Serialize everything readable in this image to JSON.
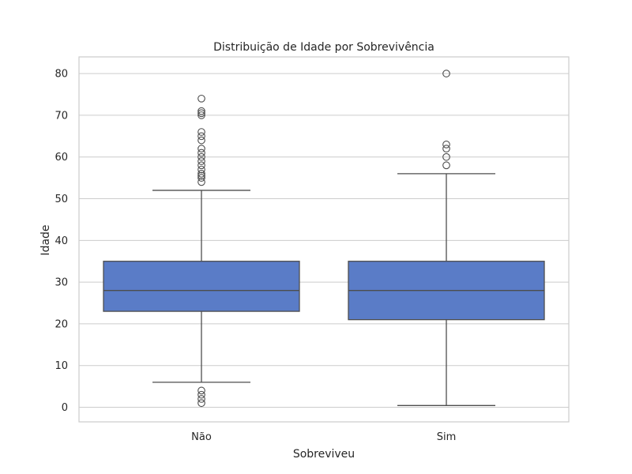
{
  "chart_data": {
    "type": "box",
    "title": "Distribuição de Idade por Sobrevivência",
    "xlabel": "Sobreviveu",
    "ylabel": "Idade",
    "categories": [
      "Não",
      "Sim"
    ],
    "ylim": [
      -3.5,
      84
    ],
    "yticks": [
      0,
      10,
      20,
      30,
      40,
      50,
      60,
      70,
      80
    ],
    "grid": true,
    "box_color": "#5a7cc7",
    "line_color": "#4d4d4d",
    "boxes": [
      {
        "category": "Não",
        "whisker_low": 6,
        "q1": 23,
        "median": 28,
        "q3": 35,
        "whisker_high": 52,
        "outliers": [
          74,
          71,
          70.5,
          70,
          66,
          65,
          64,
          62,
          61,
          60,
          59,
          58,
          57,
          56,
          55.5,
          55,
          54,
          4,
          3,
          2,
          1
        ]
      },
      {
        "category": "Sim",
        "whisker_low": 0.42,
        "q1": 21,
        "median": 28,
        "q3": 35,
        "whisker_high": 56,
        "outliers": [
          80,
          63,
          62,
          60,
          58
        ]
      }
    ]
  }
}
